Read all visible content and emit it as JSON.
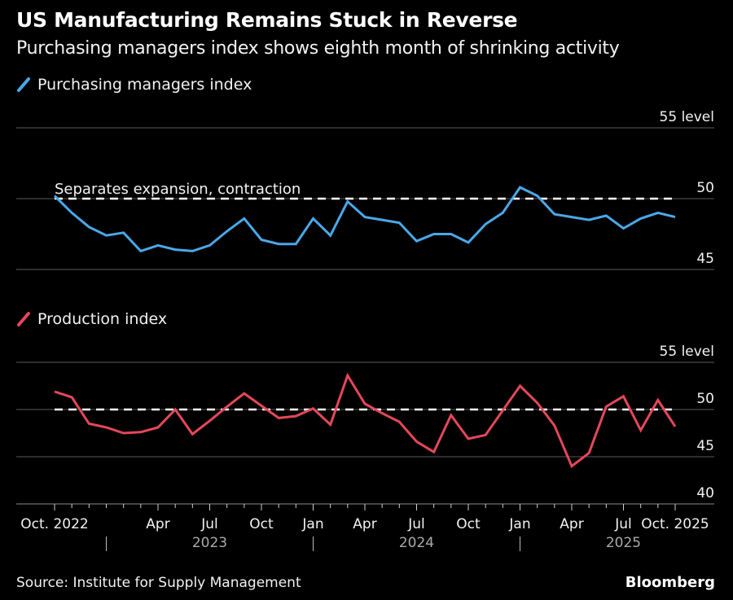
{
  "header": {
    "title": "US Manufacturing Remains Stuck in Reverse",
    "subtitle": "Purchasing managers index shows eighth month of shrinking activity"
  },
  "footer": {
    "source": "Source: Institute for Supply Management",
    "brand": "Bloomberg"
  },
  "colors": {
    "pmi": "#4aa8e8",
    "production": "#e5475b",
    "background": "#000000",
    "grid": "#5a5a5a",
    "reference_line": "#ffffff"
  },
  "chart_data": [
    {
      "type": "line",
      "name": "pmi-panel",
      "legend": "Purchasing managers index",
      "annotation": "Separates expansion, contraction",
      "reference_value": 50,
      "ylim": [
        45,
        55
      ],
      "yticks": [
        {
          "value": 55,
          "label": "55 level"
        },
        {
          "value": 50,
          "label": "50"
        },
        {
          "value": 45,
          "label": "45"
        }
      ],
      "grid": true,
      "x": [
        "2022-10",
        "2022-11",
        "2022-12",
        "2023-01",
        "2023-02",
        "2023-03",
        "2023-04",
        "2023-05",
        "2023-06",
        "2023-07",
        "2023-08",
        "2023-09",
        "2023-10",
        "2023-11",
        "2023-12",
        "2024-01",
        "2024-02",
        "2024-03",
        "2024-04",
        "2024-05",
        "2024-06",
        "2024-07",
        "2024-08",
        "2024-09",
        "2024-10",
        "2024-11",
        "2024-12",
        "2025-01",
        "2025-02",
        "2025-03",
        "2025-04",
        "2025-05",
        "2025-06",
        "2025-07",
        "2025-08",
        "2025-09",
        "2025-10"
      ],
      "values": [
        50.2,
        49.0,
        48.0,
        47.4,
        47.6,
        46.3,
        46.7,
        46.4,
        46.3,
        46.7,
        47.7,
        48.6,
        47.1,
        46.8,
        46.8,
        48.6,
        47.4,
        49.8,
        48.7,
        48.5,
        48.3,
        47.0,
        47.5,
        47.5,
        46.9,
        48.2,
        49.0,
        50.8,
        50.2,
        48.9,
        48.7,
        48.5,
        48.8,
        47.9,
        48.6,
        49.0,
        48.7
      ]
    },
    {
      "type": "line",
      "name": "production-panel",
      "legend": "Production index",
      "reference_value": 50,
      "ylim": [
        40,
        55
      ],
      "yticks": [
        {
          "value": 55,
          "label": "55 level"
        },
        {
          "value": 50,
          "label": "50"
        },
        {
          "value": 45,
          "label": "45"
        },
        {
          "value": 40,
          "label": "40"
        }
      ],
      "grid": true,
      "x": [
        "2022-10",
        "2022-11",
        "2022-12",
        "2023-01",
        "2023-02",
        "2023-03",
        "2023-04",
        "2023-05",
        "2023-06",
        "2023-07",
        "2023-08",
        "2023-09",
        "2023-10",
        "2023-11",
        "2023-12",
        "2024-01",
        "2024-02",
        "2024-03",
        "2024-04",
        "2024-05",
        "2024-06",
        "2024-07",
        "2024-08",
        "2024-09",
        "2024-10",
        "2024-11",
        "2024-12",
        "2025-01",
        "2025-02",
        "2025-03",
        "2025-04",
        "2025-05",
        "2025-06",
        "2025-07",
        "2025-08",
        "2025-09",
        "2025-10"
      ],
      "values": [
        51.9,
        51.3,
        48.5,
        48.1,
        47.5,
        47.6,
        48.1,
        50.0,
        47.4,
        48.8,
        50.3,
        51.7,
        50.4,
        49.1,
        49.3,
        50.1,
        48.4,
        53.6,
        50.6,
        49.6,
        48.7,
        46.6,
        45.5,
        49.4,
        46.9,
        47.3,
        49.9,
        52.5,
        50.7,
        48.3,
        44.0,
        45.4,
        50.3,
        51.4,
        47.8,
        51.0,
        48.2
      ]
    }
  ],
  "x_axis": {
    "month_labels": [
      {
        "index": 0,
        "label": "Oct. 2022"
      },
      {
        "index": 6,
        "label": "Apr"
      },
      {
        "index": 9,
        "label": "Jul"
      },
      {
        "index": 12,
        "label": "Oct"
      },
      {
        "index": 15,
        "label": "Jan"
      },
      {
        "index": 18,
        "label": "Apr"
      },
      {
        "index": 21,
        "label": "Jul"
      },
      {
        "index": 24,
        "label": "Oct"
      },
      {
        "index": 27,
        "label": "Jan"
      },
      {
        "index": 30,
        "label": "Apr"
      },
      {
        "index": 33,
        "label": "Jul"
      },
      {
        "index": 36,
        "label": "Oct. 2025"
      }
    ],
    "year_labels": [
      {
        "index": 9,
        "label": "2023"
      },
      {
        "index": 21,
        "label": "2024"
      },
      {
        "index": 33,
        "label": "2025"
      }
    ],
    "year_dividers": [
      3,
      15,
      27
    ]
  }
}
